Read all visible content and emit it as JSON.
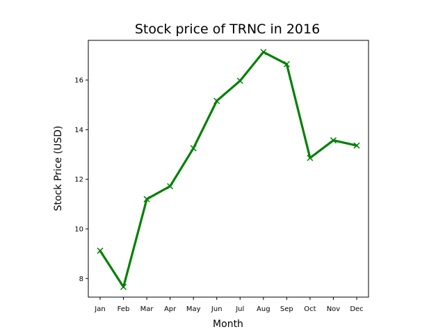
{
  "chart_data": {
    "type": "line",
    "title": "Stock price of TRNC in 2016",
    "xlabel": "Month",
    "ylabel": "Stock Price (USD)",
    "categories": [
      "Jan",
      "Feb",
      "Mar",
      "Apr",
      "May",
      "Jun",
      "Jul",
      "Aug",
      "Sep",
      "Oct",
      "Nov",
      "Dec"
    ],
    "series": [
      {
        "values": [
          9.12,
          7.66,
          11.2,
          11.72,
          13.25,
          15.16,
          15.97,
          17.13,
          16.64,
          12.86,
          13.57,
          13.36
        ],
        "color": "#008000",
        "marker": "x"
      }
    ],
    "ylim": [
      7.25,
      17.6
    ],
    "yticks": [
      8,
      10,
      12,
      14,
      16
    ],
    "grid": false,
    "legend": "none"
  }
}
